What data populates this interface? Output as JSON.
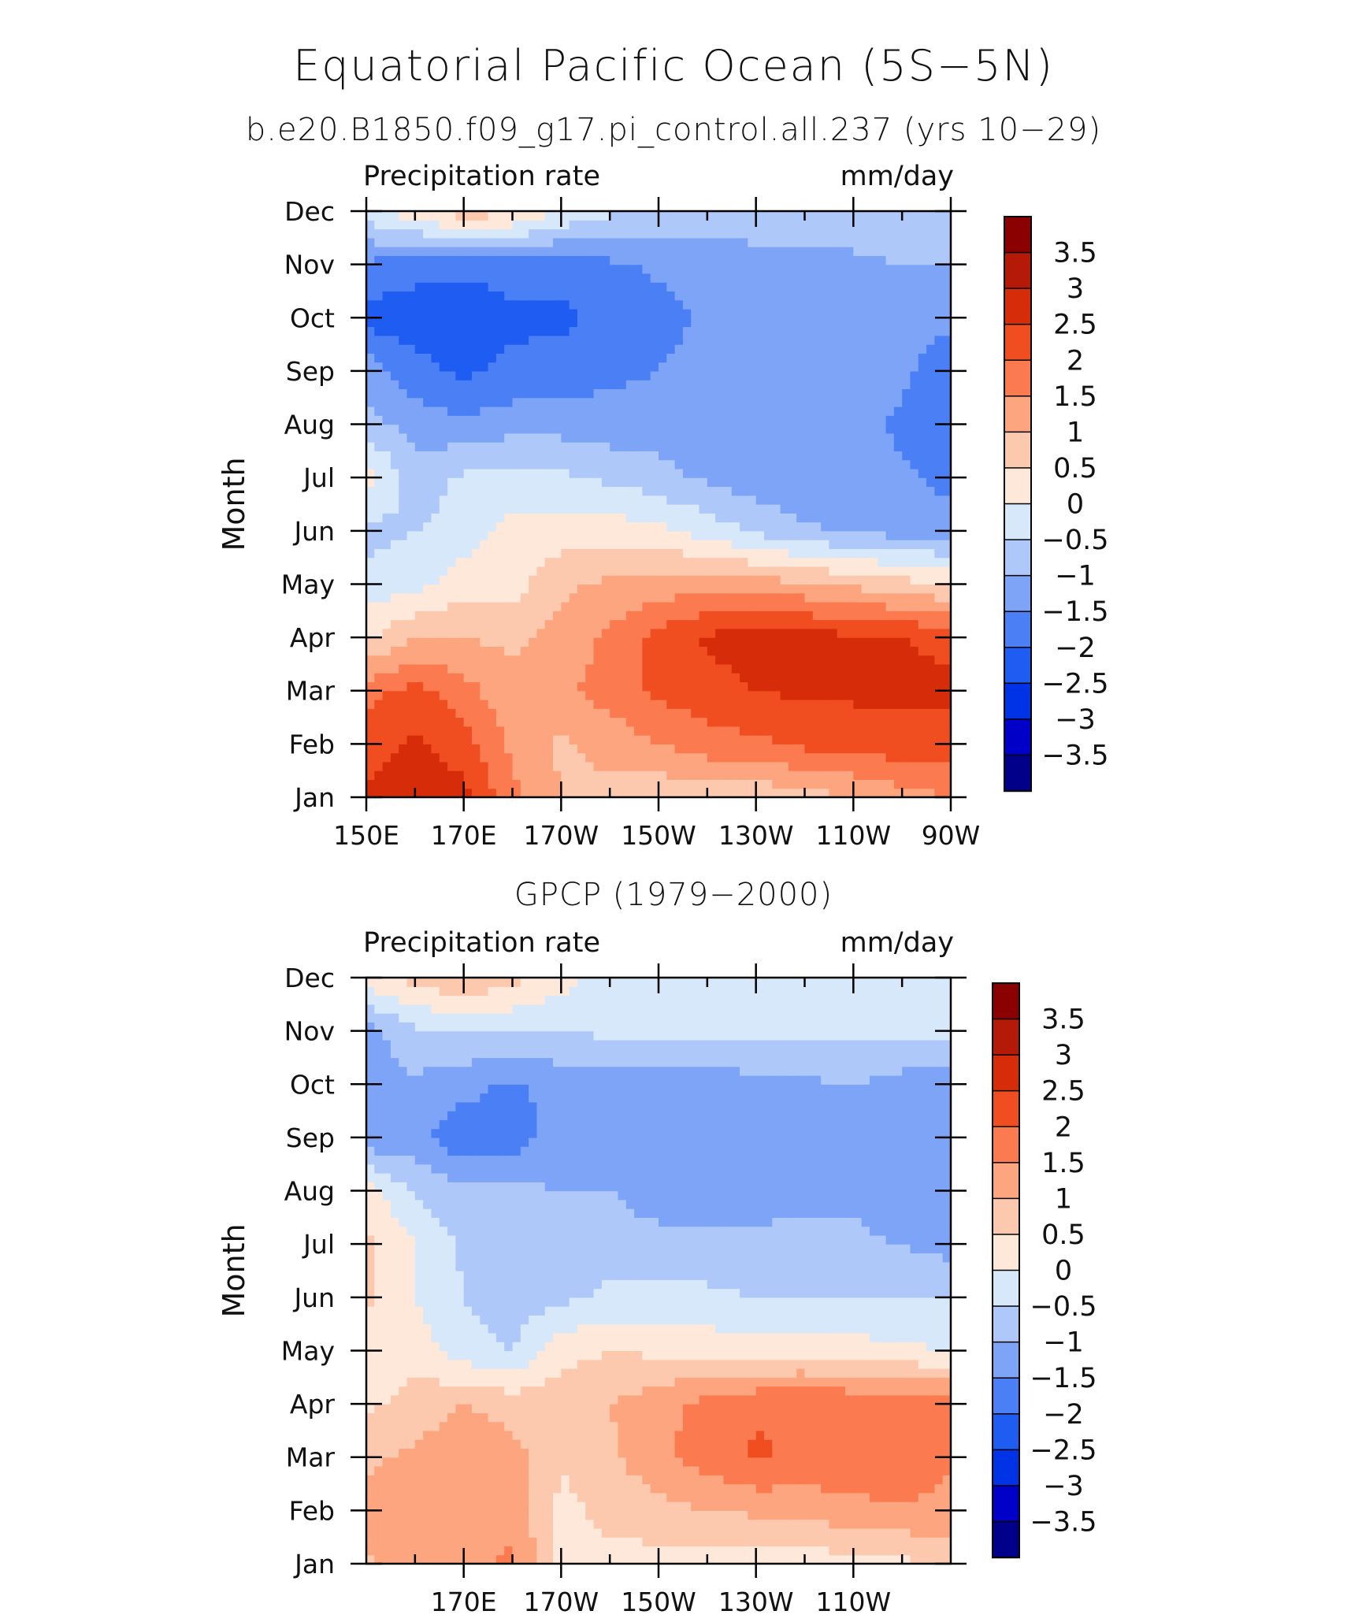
{
  "title": "Equatorial Pacific Ocean (5S−5N)",
  "colors": {
    "levels": [
      "#00008b",
      "#0000c8",
      "#0033e6",
      "#1f5cf2",
      "#4a7ff5",
      "#7da4f7",
      "#aec8f9",
      "#d7e8fb",
      "#fde8da",
      "#fcc9ae",
      "#fca57f",
      "#fb7a4f",
      "#f04e20",
      "#d62c0a",
      "#b51a08",
      "#8b0000"
    ]
  },
  "chart_data": [
    {
      "type": "heatmap",
      "title": "b.e20.B1850.f09_g17.pi_control.all.237 (yrs 10−29)",
      "left_label": "Precipitation rate",
      "right_label": "mm/day",
      "ylabel": "Month",
      "x_tick_labels": [
        "150E",
        "170E",
        "170W",
        "150W",
        "130W",
        "110W",
        "90W"
      ],
      "x_ticks_lon": [
        150,
        170,
        190,
        210,
        230,
        250,
        270
      ],
      "xlim": [
        150,
        270
      ],
      "y_tick_labels": [
        "Jan",
        "Feb",
        "Mar",
        "Apr",
        "May",
        "Jun",
        "Jul",
        "Aug",
        "Sep",
        "Oct",
        "Nov",
        "Dec"
      ],
      "colorbar_labels": [
        "3.5",
        "3",
        "2.5",
        "2",
        "1.5",
        "1",
        "0.5",
        "0",
        "−0.5",
        "−1",
        "−1.5",
        "−2",
        "−2.5",
        "−3",
        "−3.5"
      ],
      "levels": [
        -3.5,
        -3,
        -2.5,
        -2,
        -1.5,
        -1,
        -0.5,
        0,
        0.5,
        1,
        1.5,
        2,
        2.5,
        3,
        3.5
      ],
      "lons": [
        150,
        160,
        170,
        180,
        190,
        200,
        210,
        220,
        230,
        240,
        250,
        260,
        270
      ],
      "values": [
        [
          2.6,
          2.8,
          2.7,
          1.6,
          1.0,
          0.8,
          0.6,
          0.6,
          0.6,
          0.8,
          1.0,
          1.3,
          1.5
        ],
        [
          2.3,
          2.6,
          2.2,
          1.4,
          0.9,
          1.2,
          1.5,
          1.8,
          1.9,
          2.1,
          2.2,
          2.3,
          2.3
        ],
        [
          1.8,
          2.2,
          1.7,
          1.1,
          1.4,
          1.7,
          2.1,
          2.3,
          2.5,
          2.6,
          2.6,
          2.6,
          2.6
        ],
        [
          0.4,
          1.0,
          1.0,
          0.9,
          1.2,
          1.6,
          2.2,
          2.6,
          2.7,
          2.7,
          2.6,
          2.5,
          2.4
        ],
        [
          -0.3,
          -0.2,
          0.3,
          0.3,
          0.9,
          1.1,
          1.2,
          1.3,
          1.2,
          1.1,
          0.9,
          0.7,
          0.4
        ],
        [
          -0.7,
          -0.5,
          -0.3,
          0.2,
          0.2,
          0.3,
          0.1,
          -0.2,
          -0.6,
          -0.9,
          -1.1,
          -1.2,
          -1.2
        ],
        [
          0.3,
          -0.8,
          -0.4,
          -0.3,
          -0.4,
          -0.6,
          -0.8,
          -1.1,
          -1.3,
          -1.4,
          -1.4,
          -1.4,
          -1.7
        ],
        [
          -0.8,
          -1.2,
          -1.4,
          -1.2,
          -1.2,
          -1.3,
          -1.3,
          -1.3,
          -1.3,
          -1.3,
          -1.3,
          -1.6,
          -2.0
        ],
        [
          -1.2,
          -1.8,
          -2.1,
          -1.9,
          -1.8,
          -1.6,
          -1.5,
          -1.3,
          -1.3,
          -1.3,
          -1.3,
          -1.4,
          -1.8
        ],
        [
          -2.2,
          -2.3,
          -2.3,
          -2.1,
          -2.1,
          -1.9,
          -1.7,
          -1.4,
          -1.3,
          -1.3,
          -1.3,
          -1.3,
          -1.4
        ],
        [
          -1.6,
          -1.8,
          -1.9,
          -1.8,
          -1.8,
          -1.6,
          -1.4,
          -1.3,
          -1.2,
          -1.2,
          -1.1,
          -1.0,
          -1.0
        ],
        [
          -0.2,
          0.4,
          0.8,
          0.6,
          0.0,
          -0.4,
          -0.6,
          -0.7,
          -0.7,
          -0.7,
          -0.7,
          -0.6,
          -0.5
        ]
      ]
    },
    {
      "type": "heatmap",
      "title": "GPCP (1979−2000)",
      "left_label": "Precipitation rate",
      "right_label": "mm/day",
      "ylabel": "Month",
      "x_tick_labels": [
        "170E",
        "170W",
        "150W",
        "130W",
        "110W"
      ],
      "x_ticks_lon": [
        170,
        190,
        210,
        230,
        250
      ],
      "xlim": [
        150,
        270
      ],
      "y_tick_labels": [
        "Jan",
        "Feb",
        "Mar",
        "Apr",
        "May",
        "Jun",
        "Jul",
        "Aug",
        "Sep",
        "Oct",
        "Nov",
        "Dec"
      ],
      "colorbar_labels": [
        "3.5",
        "3",
        "2.5",
        "2",
        "1.5",
        "1",
        "0.5",
        "0",
        "−0.5",
        "−1",
        "−1.5",
        "−2",
        "−2.5",
        "−3",
        "−3.5"
      ],
      "levels": [
        -3.5,
        -3,
        -2.5,
        -2,
        -1.5,
        -1,
        -0.5,
        0,
        0.5,
        1,
        1.5,
        2,
        2.5,
        3,
        3.5
      ],
      "lons": [
        150,
        160,
        170,
        180,
        190,
        200,
        210,
        220,
        230,
        240,
        250,
        260,
        270
      ],
      "values": [
        [
          0.9,
          1.3,
          1.4,
          1.6,
          0.3,
          0.4,
          0.3,
          0.2,
          0.1,
          0.2,
          0.3,
          0.4,
          0.6
        ],
        [
          1.2,
          1.5,
          1.2,
          1.3,
          0.4,
          0.6,
          0.8,
          1.0,
          1.1,
          1.2,
          1.3,
          1.4,
          1.4
        ],
        [
          0.9,
          1.1,
          1.4,
          1.2,
          0.5,
          0.9,
          1.4,
          1.7,
          2.1,
          1.8,
          2.0,
          2.0,
          1.5
        ],
        [
          0.4,
          0.7,
          1.0,
          0.8,
          0.8,
          1.0,
          1.3,
          1.7,
          1.9,
          2.0,
          1.9,
          1.9,
          1.7
        ],
        [
          0.1,
          0.3,
          -0.3,
          -0.5,
          0.3,
          0.5,
          0.4,
          0.3,
          0.3,
          0.3,
          0.2,
          0.1,
          0.0
        ],
        [
          0.6,
          0.0,
          -0.5,
          -0.8,
          -0.6,
          -0.4,
          -0.3,
          -0.4,
          -0.5,
          -0.5,
          -0.5,
          -0.5,
          -0.5
        ],
        [
          0.6,
          0.0,
          -0.6,
          -0.8,
          -0.8,
          -0.7,
          -0.8,
          -0.8,
          -0.8,
          -0.9,
          -0.9,
          -1.0,
          -1.2
        ],
        [
          0.3,
          -0.6,
          -0.9,
          -0.9,
          -1.0,
          -1.0,
          -1.3,
          -1.4,
          -1.3,
          -1.1,
          -1.1,
          -1.4,
          -1.3
        ],
        [
          -1.4,
          -1.3,
          -1.9,
          -1.8,
          -1.2,
          -1.1,
          -1.3,
          -1.4,
          -1.4,
          -1.3,
          -1.2,
          -1.4,
          -1.4
        ],
        [
          -1.2,
          -1.1,
          -1.3,
          -1.6,
          -1.3,
          -1.2,
          -1.4,
          -1.3,
          -1.2,
          -1.1,
          -1.0,
          -1.2,
          -1.4
        ],
        [
          -1.2,
          -0.6,
          -0.5,
          -0.5,
          -0.5,
          -0.4,
          -0.4,
          -0.3,
          -0.3,
          -0.3,
          -0.4,
          -0.4,
          -0.4
        ],
        [
          0.3,
          0.7,
          1.0,
          0.7,
          0.2,
          -0.2,
          -0.3,
          -0.3,
          -0.3,
          -0.3,
          -0.3,
          -0.3,
          -0.3
        ]
      ]
    }
  ]
}
